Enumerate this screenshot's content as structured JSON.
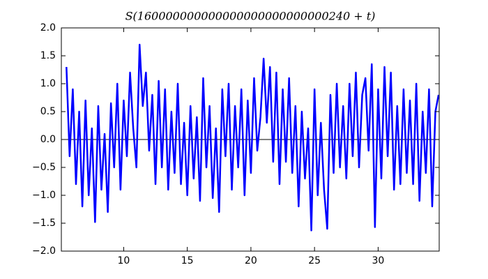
{
  "chart_data": {
    "type": "line",
    "title": "S(160000000000000000000000000240 + t)",
    "x": [
      5.5,
      5.75,
      6,
      6.25,
      6.5,
      6.75,
      7,
      7.25,
      7.5,
      7.75,
      8,
      8.25,
      8.5,
      8.75,
      9,
      9.25,
      9.5,
      9.75,
      10,
      10.25,
      10.5,
      10.75,
      11,
      11.25,
      11.5,
      11.75,
      12,
      12.25,
      12.5,
      12.75,
      13,
      13.25,
      13.5,
      13.75,
      14,
      14.25,
      14.5,
      14.75,
      15,
      15.25,
      15.5,
      15.75,
      16,
      16.25,
      16.5,
      16.75,
      17,
      17.25,
      17.5,
      17.75,
      18,
      18.25,
      18.5,
      18.75,
      19,
      19.25,
      19.5,
      19.75,
      20,
      20.25,
      20.5,
      20.75,
      21,
      21.25,
      21.5,
      21.75,
      22,
      22.25,
      22.5,
      22.75,
      23,
      23.25,
      23.5,
      23.75,
      24,
      24.25,
      24.5,
      24.75,
      25,
      25.25,
      25.5,
      25.75,
      26,
      26.25,
      26.5,
      26.75,
      27,
      27.25,
      27.5,
      27.75,
      28,
      28.25,
      28.5,
      28.75,
      29,
      29.25,
      29.5,
      29.75,
      30,
      30.25,
      30.5,
      30.75,
      31,
      31.25,
      31.5,
      31.75,
      32,
      32.25,
      32.5,
      32.75,
      33,
      33.25,
      33.5,
      33.75,
      34,
      34.25,
      34.5,
      34.75
    ],
    "series": [
      {
        "color": "#0000ff",
        "values": [
          1.3,
          -0.3,
          0.9,
          -0.8,
          0.5,
          -1.2,
          0.7,
          -1.0,
          0.2,
          -1.48,
          0.6,
          -0.9,
          0.1,
          -1.3,
          0.65,
          -0.5,
          1.0,
          -0.9,
          0.7,
          -0.3,
          1.2,
          0.2,
          -0.5,
          1.7,
          0.6,
          1.2,
          -0.2,
          0.8,
          -0.8,
          1.05,
          -0.5,
          0.9,
          -0.9,
          0.5,
          -0.6,
          1.0,
          -0.8,
          0.3,
          -1.0,
          0.6,
          -0.7,
          0.4,
          -1.1,
          1.1,
          -0.5,
          0.6,
          -1.05,
          0.2,
          -1.3,
          0.9,
          -0.3,
          1.0,
          -0.9,
          0.6,
          -0.5,
          0.9,
          -1.0,
          0.7,
          -0.6,
          1.1,
          -0.2,
          0.4,
          1.45,
          0.3,
          1.3,
          -0.4,
          1.2,
          -0.8,
          0.9,
          -0.4,
          1.1,
          -0.6,
          0.6,
          -1.2,
          0.5,
          -0.7,
          0.2,
          -1.63,
          0.9,
          -1.0,
          0.3,
          -0.9,
          -1.6,
          0.8,
          -0.6,
          1.0,
          -0.5,
          0.6,
          -0.7,
          1.0,
          -0.3,
          1.2,
          -0.5,
          0.8,
          1.1,
          -0.2,
          1.35,
          -1.57,
          0.9,
          -0.7,
          1.3,
          -0.3,
          1.2,
          -0.9,
          0.6,
          -0.8,
          0.9,
          -0.6,
          0.7,
          -0.8,
          1.0,
          -1.1,
          0.5,
          -0.6,
          0.9,
          -1.2,
          0.5,
          0.8
        ]
      }
    ],
    "xlim": [
      5.1,
      34.8
    ],
    "ylim": [
      -2.0,
      2.0
    ],
    "xticks": [
      10,
      15,
      20,
      25,
      30
    ],
    "yticks": [
      {
        "value": -2.0,
        "label": "−2.0"
      },
      {
        "value": -1.5,
        "label": "−1.5"
      },
      {
        "value": -1.0,
        "label": "−1.0"
      },
      {
        "value": -0.5,
        "label": "−0.5"
      },
      {
        "value": 0.0,
        "label": "0.0"
      },
      {
        "value": 0.5,
        "label": "0.5"
      },
      {
        "value": 1.0,
        "label": "1.0"
      },
      {
        "value": 1.5,
        "label": "1.5"
      },
      {
        "value": 2.0,
        "label": "2.0"
      }
    ],
    "hline": 0
  }
}
